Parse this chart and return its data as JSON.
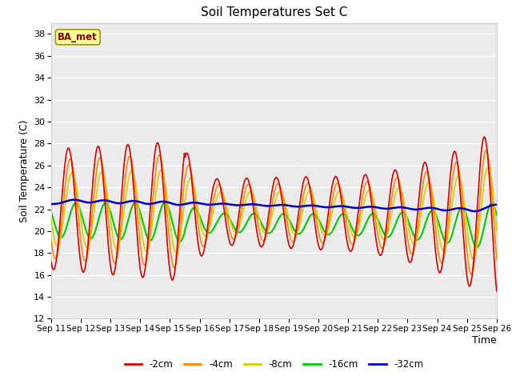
{
  "title": "Soil Temperatures Set C",
  "xlabel": "Time",
  "ylabel": "Soil Temperature (C)",
  "ylim": [
    12,
    39
  ],
  "yticks": [
    12,
    14,
    16,
    18,
    20,
    22,
    24,
    26,
    28,
    30,
    32,
    34,
    36,
    38
  ],
  "x_labels": [
    "Sep 11",
    "Sep 12",
    "Sep 13",
    "Sep 14",
    "Sep 15",
    "Sep 16",
    "Sep 17",
    "Sep 18",
    "Sep 19",
    "Sep 20",
    "Sep 21",
    "Sep 22",
    "Sep 23",
    "Sep 24",
    "Sep 25",
    "Sep 26"
  ],
  "series": {
    "-2cm": {
      "color": "#dd0000",
      "lw": 1.2
    },
    "-4cm": {
      "color": "#ff8800",
      "lw": 1.2
    },
    "-8cm": {
      "color": "#ddcc00",
      "lw": 1.2
    },
    "-16cm": {
      "color": "#00cc00",
      "lw": 1.5
    },
    "-32cm": {
      "color": "#0000cc",
      "lw": 1.8
    }
  },
  "annotation_text": "BA_met",
  "annotation_color": "#8b0000",
  "annotation_bg": "#ffff99",
  "bg_color": "#ebebeb",
  "legend_colors": [
    "#dd0000",
    "#ff8800",
    "#ddcc00",
    "#00cc00",
    "#0000cc"
  ],
  "legend_labels": [
    "-2cm",
    "-4cm",
    "-8cm",
    "-16cm",
    "-32cm"
  ]
}
